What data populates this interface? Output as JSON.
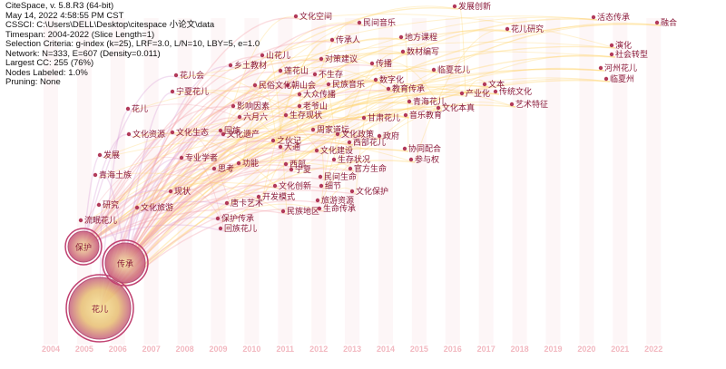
{
  "header": {
    "lines": [
      "CiteSpace, v. 5.8.R3 (64-bit)",
      "May 14, 2022 4:58:55 PM CST",
      "CSSCI: C:\\Users\\DELL\\Desktop\\citespace 小论文\\data",
      "Timespan: 2004-2022 (Slice Length=1)",
      "Selection Criteria: g-index (k=25), LRF=3.0, L/N=10, LBY=5, e=1.0",
      "Network: N=333, E=607 (Density=0.011)",
      "Largest CC: 255 (76%)",
      "Nodes Labeled: 1.0%",
      "Pruning: None"
    ]
  },
  "years": [
    "2004",
    "2005",
    "2006",
    "2007",
    "2008",
    "2009",
    "2010",
    "2011",
    "2012",
    "2013",
    "2014",
    "2015",
    "2016",
    "2017",
    "2018",
    "2019",
    "2020",
    "2021",
    "2022"
  ],
  "big_nodes": [
    {
      "label": "花儿",
      "year": "2006"
    },
    {
      "label": "传承",
      "year": "2006"
    },
    {
      "label": "保护",
      "year": "2005"
    }
  ],
  "keywords": [
    {
      "label": "文化空间",
      "year": "2011"
    },
    {
      "label": "民间音乐",
      "year": "2013"
    },
    {
      "label": "发展创新",
      "year": "2018"
    },
    {
      "label": "活态传承",
      "year": "2020"
    },
    {
      "label": "融合",
      "year": "2022"
    },
    {
      "label": "传承人",
      "year": "2012"
    },
    {
      "label": "地方课程",
      "year": "2014"
    },
    {
      "label": "花儿研究",
      "year": "2018"
    },
    {
      "label": "数材编写",
      "year": "2015"
    },
    {
      "label": "山花儿",
      "year": "2011"
    },
    {
      "label": "乡土教材",
      "year": "2010"
    },
    {
      "label": "演化",
      "year": "2021"
    },
    {
      "label": "社会转型",
      "year": "2021"
    },
    {
      "label": "莲花山",
      "year": "2011"
    },
    {
      "label": "对策建议",
      "year": "2013"
    },
    {
      "label": "传播",
      "year": "2014"
    },
    {
      "label": "临夏花儿",
      "year": "2016"
    },
    {
      "label": "花儿会",
      "year": "2008"
    },
    {
      "label": "不生存",
      "year": "2012"
    },
    {
      "label": "数字化",
      "year": "2014"
    },
    {
      "label": "河州花儿",
      "year": "2020"
    },
    {
      "label": "民俗文化",
      "year": "2010"
    },
    {
      "label": "朝山会",
      "year": "2011"
    },
    {
      "label": "民族音乐",
      "year": "2012"
    },
    {
      "label": "教育传承",
      "year": "2014"
    },
    {
      "label": "产业化",
      "year": "2017"
    },
    {
      "label": "传统文化",
      "year": "2017"
    },
    {
      "label": "临夏州",
      "year": "2020"
    },
    {
      "label": "宁夏花儿",
      "year": "2008"
    },
    {
      "label": "大众传播",
      "year": "2012"
    },
    {
      "label": "文本",
      "year": "2018"
    },
    {
      "label": "青海花儿",
      "year": "2012"
    },
    {
      "label": "影响因素",
      "year": "2010"
    },
    {
      "label": "老爷山",
      "year": "2012"
    },
    {
      "label": "文化本真",
      "year": "2016"
    },
    {
      "label": "艺术特征",
      "year": "2018"
    },
    {
      "label": "花儿",
      "year": "2006"
    },
    {
      "label": "六月六",
      "year": "2010"
    },
    {
      "label": "生存现状",
      "year": "2011"
    },
    {
      "label": "甘肃花儿",
      "year": "2013"
    },
    {
      "label": "音乐教育",
      "year": "2015"
    },
    {
      "label": "文化资源",
      "year": "2006"
    },
    {
      "label": "文化生态",
      "year": "2008"
    },
    {
      "label": "回族",
      "year": "2009"
    },
    {
      "label": "周家道坛",
      "year": "2011"
    },
    {
      "label": "文化遗产",
      "year": "2010"
    },
    {
      "label": "之伙记",
      "year": "2011"
    },
    {
      "label": "文化政策",
      "year": "2013"
    },
    {
      "label": "政府",
      "year": "2016"
    },
    {
      "label": "西部花儿",
      "year": "2013"
    },
    {
      "label": "发展",
      "year": "2005"
    },
    {
      "label": "大通",
      "year": "2011"
    },
    {
      "label": "文化建设",
      "year": "2012"
    },
    {
      "label": "协同配合",
      "year": "2016"
    },
    {
      "label": "专业学者",
      "year": "2008"
    },
    {
      "label": "思考",
      "year": "2009"
    },
    {
      "label": "功能",
      "year": "2010"
    },
    {
      "label": "西部",
      "year": "2012"
    },
    {
      "label": "宁夏",
      "year": "2011"
    },
    {
      "label": "生存状况",
      "year": "2013"
    },
    {
      "label": "参与权",
      "year": "2016"
    },
    {
      "label": "青海土族",
      "year": "2005"
    },
    {
      "label": "官方生命",
      "year": "2014"
    },
    {
      "label": "民间生命",
      "year": "2013"
    },
    {
      "label": "文化创新",
      "year": "2011"
    },
    {
      "label": "现状",
      "year": "2008"
    },
    {
      "label": "开发模式",
      "year": "2010"
    },
    {
      "label": "细节",
      "year": "2012"
    },
    {
      "label": "文化保护",
      "year": "2013"
    },
    {
      "label": "研究",
      "year": "2006"
    },
    {
      "label": "文化旅游",
      "year": "2007"
    },
    {
      "label": "唐卡艺术",
      "year": "2010"
    },
    {
      "label": "旅游资源",
      "year": "2011"
    },
    {
      "label": "流眠花儿",
      "year": "2005"
    },
    {
      "label": "民族地区",
      "year": "2011"
    },
    {
      "label": "生命传承",
      "year": "2013"
    },
    {
      "label": "保护传承",
      "year": "2009"
    },
    {
      "label": "回族花儿",
      "year": "2009"
    }
  ],
  "colors": {
    "early_node": "#b23a5a",
    "link_early": "#d9a0d8",
    "link_mid": "#f3a0a8",
    "link_late": "#ffd060",
    "year_label": "#f2b8c0"
  }
}
